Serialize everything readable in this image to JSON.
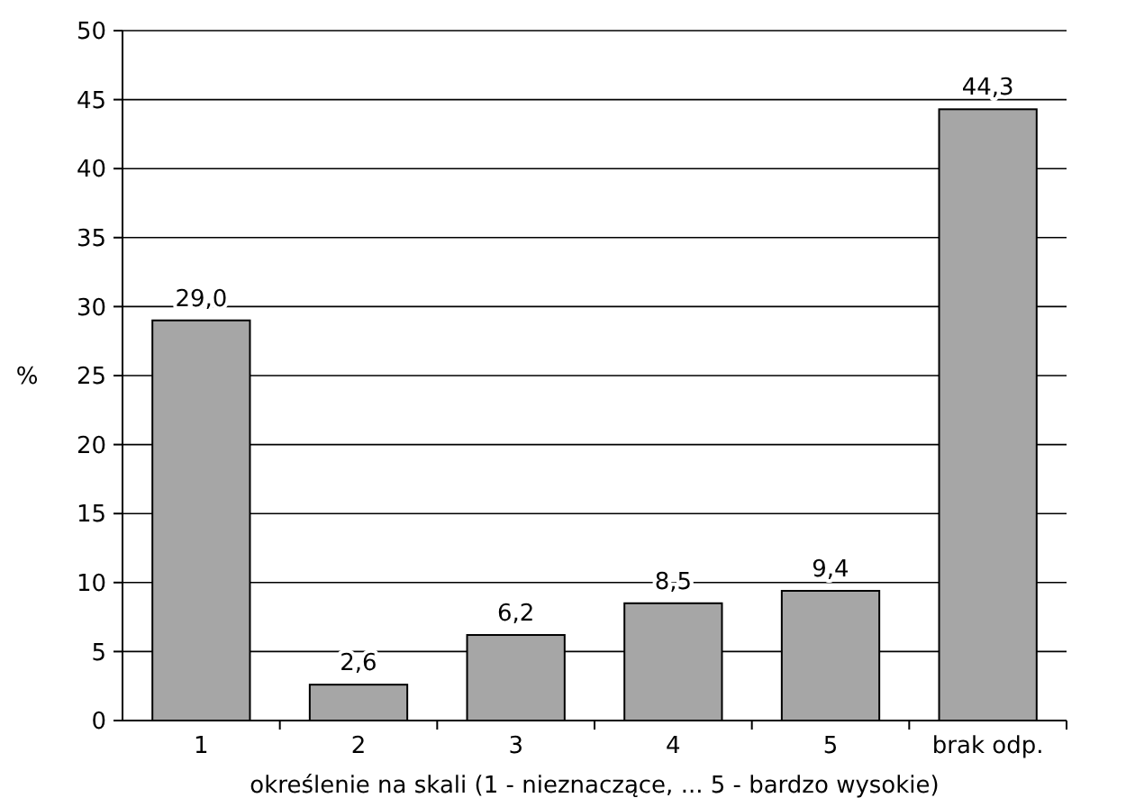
{
  "chart_data": {
    "type": "bar",
    "xlabel": "określenie na skali (1 - nieznaczące, ... 5 - bardzo wysokie)",
    "ylabel": "%",
    "categories": [
      "1",
      "2",
      "3",
      "4",
      "5",
      "brak odp."
    ],
    "values": [
      29.0,
      2.6,
      6.2,
      8.5,
      9.4,
      44.3
    ],
    "value_labels": [
      "29,0",
      "2,6",
      "6,2",
      "8,5",
      "9,4",
      "44,3"
    ],
    "color": "#a6a6a6",
    "ylim": [
      0,
      50
    ],
    "yticks": [
      0,
      5,
      10,
      15,
      20,
      25,
      30,
      35,
      40,
      45,
      50
    ],
    "grid": "y"
  }
}
